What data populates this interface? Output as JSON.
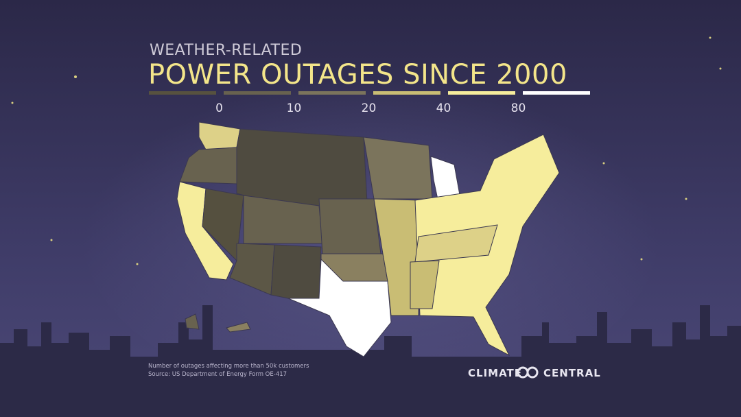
{
  "header": {
    "kicker": "WEATHER-RELATED",
    "title": "POWER OUTAGES SINCE 2000"
  },
  "legend": {
    "colors": [
      "#57523f",
      "#68624f",
      "#7b745c",
      "#c9bd74",
      "#f6ed9c",
      "#ffffff"
    ],
    "ticks": [
      0,
      10,
      20,
      40,
      80
    ]
  },
  "footnote": {
    "description": "Number of outages affecting more than 50k customers",
    "source": "Source: US Department of Energy Form OE-417"
  },
  "brand": {
    "left": "CLIMATE",
    "right": "CENTRAL"
  }
}
